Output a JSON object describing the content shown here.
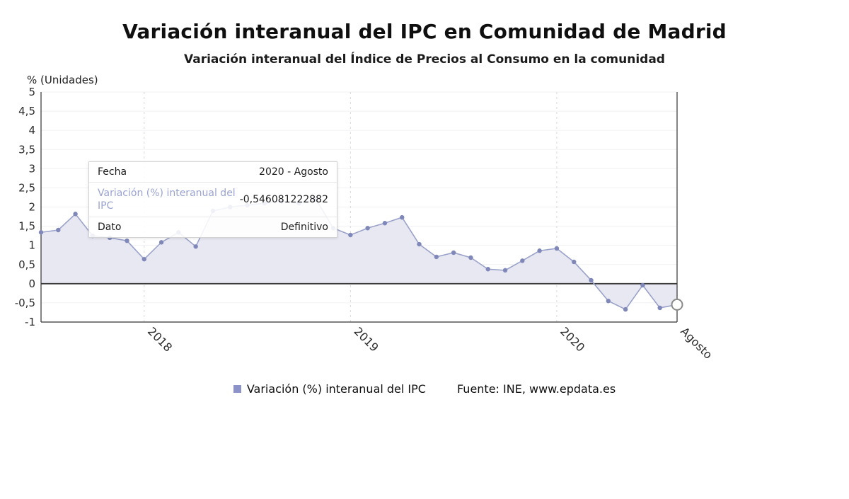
{
  "colors": {
    "line": "#9aa2c9",
    "dot": "#7f88b8",
    "area": "#e8e8f2",
    "tooltip_label": "#9aa3d0",
    "legend_swatch": "#8b93c9",
    "zero_line": "#3a3a3a",
    "axis": "#333333",
    "grid_dash": "#d9d9de",
    "highlight_stroke": "#8a8a8a"
  },
  "tooltip": {
    "rows": [
      {
        "label": "Fecha",
        "value": "2020 - Agosto"
      },
      {
        "label": "Variación (%) interanual del IPC",
        "value": "-0,546081222882"
      },
      {
        "label": "Dato",
        "value": "Definitivo"
      }
    ]
  },
  "footer": {
    "source": "Fuente: INE, www.epdata.es"
  },
  "chart_data": {
    "type": "line",
    "title": "Variación interanual del IPC en Comunidad de Madrid",
    "subtitle": "Variación interanual del Índice de Precios al Consumo en la comunidad",
    "ylabel": "% (Unidades)",
    "ylim": [
      -1,
      5
    ],
    "ytick_step": 0.5,
    "grid": true,
    "legend_position": "bottom-center",
    "x": [
      "2017-07",
      "2017-08",
      "2017-09",
      "2017-10",
      "2017-11",
      "2017-12",
      "2018-01",
      "2018-02",
      "2018-03",
      "2018-04",
      "2018-05",
      "2018-06",
      "2018-07",
      "2018-08",
      "2018-09",
      "2018-10",
      "2018-11",
      "2018-12",
      "2019-01",
      "2019-02",
      "2019-03",
      "2019-04",
      "2019-05",
      "2019-06",
      "2019-07",
      "2019-08",
      "2019-09",
      "2019-10",
      "2019-11",
      "2019-12",
      "2020-01",
      "2020-02",
      "2020-03",
      "2020-04",
      "2020-05",
      "2020-06",
      "2020-07",
      "2020-08"
    ],
    "x_ticks": [
      {
        "x": "2018-01",
        "label": "2018"
      },
      {
        "x": "2019-01",
        "label": "2019"
      },
      {
        "x": "2020-01",
        "label": "2020"
      },
      {
        "x": "2020-08",
        "label": "Agosto"
      }
    ],
    "series": [
      {
        "name": "Variación (%) interanual del IPC",
        "values": [
          1.34,
          1.4,
          1.82,
          1.25,
          1.2,
          1.12,
          0.64,
          1.08,
          1.34,
          0.97,
          1.9,
          2.0,
          2.05,
          2.1,
          2.15,
          2.1,
          2.2,
          1.45,
          1.27,
          1.45,
          1.58,
          1.73,
          1.03,
          0.7,
          0.81,
          0.68,
          0.38,
          0.35,
          0.6,
          0.86,
          0.92,
          0.57,
          0.09,
          -0.45,
          -0.67,
          -0.04,
          -0.63,
          -0.546081222882
        ]
      }
    ],
    "highlighted_point": {
      "x": "2020-08",
      "value": -0.546081222882
    }
  }
}
